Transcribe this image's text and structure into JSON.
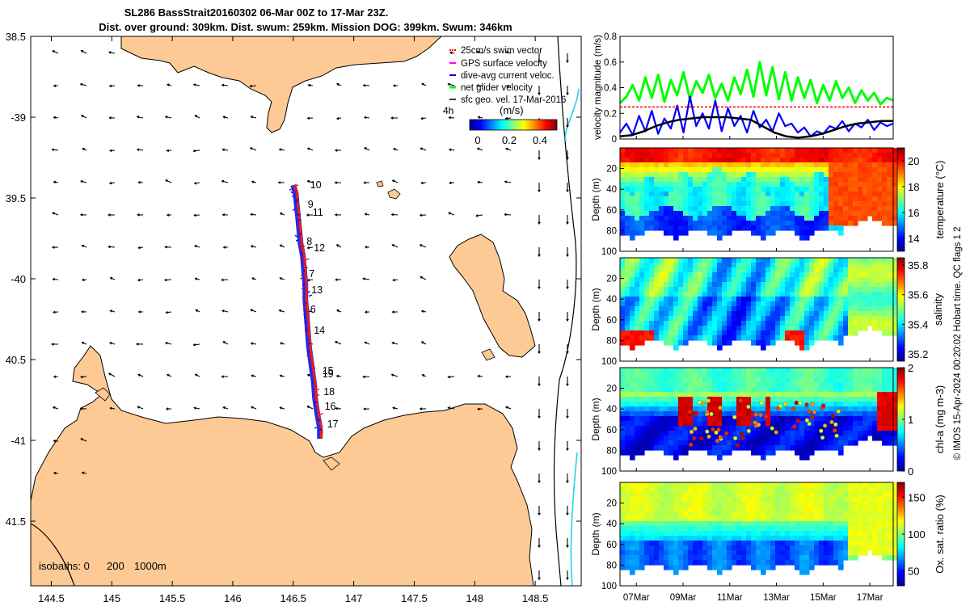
{
  "header": {
    "line1": "SL286 BassStrait20160302 06-Mar 00Z to 17-Mar 23Z.",
    "line2": "Dist. over ground: 309km. Dist. swum: 259km. Mission DOG: 399km. Swum: 346km"
  },
  "chart_data": [
    {
      "type": "map",
      "title": "glider track and surface velocity map",
      "lon_ticks": [
        "144.5",
        "145",
        "145.5",
        "146",
        "146.5",
        "147",
        "147.5",
        "148",
        "148.5"
      ],
      "lon_values": [
        144.5,
        145,
        145.5,
        146,
        146.5,
        147,
        147.5,
        148,
        148.5
      ],
      "lat_ticks": [
        "38.5",
        "-39",
        "39.5",
        "-40",
        "40.5",
        "-41",
        "41.5"
      ],
      "lat_values": [
        -38.5,
        -39,
        -39.5,
        -40,
        -40.5,
        -41,
        -41.5
      ],
      "xlim": [
        144.33,
        148.88
      ],
      "ylim": [
        -41.9,
        -38.5
      ],
      "legend": [
        {
          "label": "25cm/s swim vector",
          "color": "#ff0000"
        },
        {
          "label": "GPS surface velocity",
          "color": "#ff00ff"
        },
        {
          "label": "dive-avg current veloc.",
          "color": "#0000ff"
        },
        {
          "label": "net glider velocity",
          "color": "#00ff00"
        },
        {
          "label": "sfc geo. vel. 17-Mar-2016",
          "color": "#000000"
        }
      ],
      "colorbar": {
        "label": "(m/s)",
        "prefix": "4h",
        "ticks": [
          "0",
          "0.2",
          "0.4"
        ],
        "range": [
          0,
          0.5
        ]
      },
      "isobaths": {
        "label": "isobaths: 0",
        "values": [
          "200",
          "1000m"
        ]
      },
      "day_labels": [
        {
          "day": "10",
          "lon": 146.64,
          "lat": -39.44
        },
        {
          "day": "9",
          "lon": 146.62,
          "lat": -39.56
        },
        {
          "day": "11",
          "lon": 146.66,
          "lat": -39.61
        },
        {
          "day": "8",
          "lon": 146.61,
          "lat": -39.79
        },
        {
          "day": "12",
          "lon": 146.67,
          "lat": -39.83
        },
        {
          "day": "7",
          "lon": 146.63,
          "lat": -39.99
        },
        {
          "day": "13",
          "lon": 146.65,
          "lat": -40.09
        },
        {
          "day": "6",
          "lon": 146.64,
          "lat": -40.21
        },
        {
          "day": "14",
          "lon": 146.67,
          "lat": -40.34
        },
        {
          "day": "15",
          "lon": 146.74,
          "lat": -40.59
        },
        {
          "day": "19",
          "lon": 146.74,
          "lat": -40.61
        },
        {
          "day": "18",
          "lon": 146.75,
          "lat": -40.72
        },
        {
          "day": "16",
          "lon": 146.76,
          "lat": -40.81
        },
        {
          "day": "17",
          "lon": 146.78,
          "lat": -40.92
        }
      ],
      "track": [
        [
          146.5,
          -39.42
        ],
        [
          146.52,
          -39.47
        ],
        [
          146.53,
          -39.55
        ],
        [
          146.54,
          -39.62
        ],
        [
          146.55,
          -39.7
        ],
        [
          146.56,
          -39.78
        ],
        [
          146.58,
          -39.86
        ],
        [
          146.59,
          -39.95
        ],
        [
          146.6,
          -40.04
        ],
        [
          146.6,
          -40.13
        ],
        [
          146.61,
          -40.22
        ],
        [
          146.62,
          -40.32
        ],
        [
          146.63,
          -40.42
        ],
        [
          146.65,
          -40.53
        ],
        [
          146.67,
          -40.64
        ],
        [
          146.68,
          -40.74
        ],
        [
          146.7,
          -40.84
        ],
        [
          146.72,
          -40.92
        ],
        [
          146.72,
          -40.99
        ]
      ]
    },
    {
      "type": "line",
      "title": "velocity magnitude",
      "ylabel": "velocity magnitude (m/s)",
      "yticks": [
        "0",
        "0.2",
        "0.4",
        "0.6",
        "0.8"
      ],
      "ylim": [
        0,
        0.8
      ],
      "xlim": [
        6,
        18
      ],
      "series": [
        {
          "name": "net glider velocity",
          "color": "#00ff00",
          "values": [
            0.28,
            0.33,
            0.42,
            0.3,
            0.48,
            0.32,
            0.5,
            0.29,
            0.46,
            0.34,
            0.52,
            0.31,
            0.45,
            0.36,
            0.5,
            0.32,
            0.43,
            0.3,
            0.48,
            0.35,
            0.54,
            0.33,
            0.6,
            0.34,
            0.56,
            0.31,
            0.52,
            0.3,
            0.48,
            0.32,
            0.46,
            0.28,
            0.42,
            0.3,
            0.45,
            0.32,
            0.4,
            0.28,
            0.38,
            0.3,
            0.36,
            0.27,
            0.32,
            0.3
          ]
        },
        {
          "name": "dive-avg current veloc.",
          "color": "#0000ff",
          "values": [
            0.05,
            0.12,
            0.03,
            0.18,
            0.06,
            0.22,
            0.04,
            0.16,
            0.08,
            0.26,
            0.05,
            0.33,
            0.1,
            0.2,
            0.08,
            0.3,
            0.06,
            0.24,
            0.1,
            0.18,
            0.05,
            0.22,
            0.09,
            0.15,
            0.06,
            0.2,
            0.1,
            0.12,
            0.05,
            0.09,
            0.02,
            0.06,
            0.04,
            0.1,
            0.08,
            0.14,
            0.06,
            0.12,
            0.09,
            0.15,
            0.07,
            0.13,
            0.1,
            0.12
          ]
        },
        {
          "name": "sfc geo. vel.",
          "color": "#000000",
          "values": [
            0.02,
            0.03,
            0.06,
            0.1,
            0.13,
            0.15,
            0.16,
            0.17,
            0.17,
            0.17,
            0.16,
            0.15,
            0.1,
            0.05,
            0.02,
            0.01,
            0.02,
            0.04,
            0.07,
            0.1,
            0.12,
            0.13,
            0.14,
            0.14
          ]
        },
        {
          "name": "25cm/s swim vector",
          "color": "#ff0000",
          "values": [
            0.25
          ]
        }
      ]
    },
    {
      "type": "heatmap",
      "variable": "temperature",
      "cbar_label": "temperature (°C)",
      "cticks": [
        "14",
        "16",
        "18",
        "20"
      ],
      "clim": [
        13,
        21
      ],
      "ylabel": "Depth (m)",
      "yticks": [
        "20",
        "40",
        "60",
        "80",
        "100"
      ]
    },
    {
      "type": "heatmap",
      "variable": "salinity",
      "cbar_label": "salinity",
      "cticks": [
        "35.2",
        "35.4",
        "35.6",
        "35.8"
      ],
      "clim": [
        35.15,
        35.85
      ],
      "ylabel": "Depth (m)",
      "yticks": [
        "20",
        "40",
        "60",
        "80",
        "100"
      ]
    },
    {
      "type": "heatmap",
      "variable": "chl-a",
      "cbar_label": "chl-a (mg m-3)",
      "cticks": [
        "0",
        "1",
        "2"
      ],
      "clim": [
        0,
        2
      ],
      "ylabel": "Depth (m)",
      "yticks": [
        "20",
        "40",
        "60",
        "80",
        "100"
      ]
    },
    {
      "type": "heatmap",
      "variable": "oxygen saturation",
      "cbar_label": "Ox. sat. ratio (%)",
      "cticks": [
        "50",
        "100",
        "150"
      ],
      "clim": [
        30,
        170
      ],
      "ylabel": "Depth (m)",
      "yticks": [
        "20",
        "40",
        "60",
        "80",
        "100"
      ],
      "xticks": [
        "07Mar",
        "09Mar",
        "11Mar",
        "13Mar",
        "15Mar",
        "17Mar"
      ],
      "xtick_days": [
        7,
        9,
        11,
        13,
        15,
        17
      ]
    }
  ],
  "footer": {
    "credit": "© IMOS 15-Apr-2024 00:20:02 Hobart time. QC flags 1  2"
  }
}
